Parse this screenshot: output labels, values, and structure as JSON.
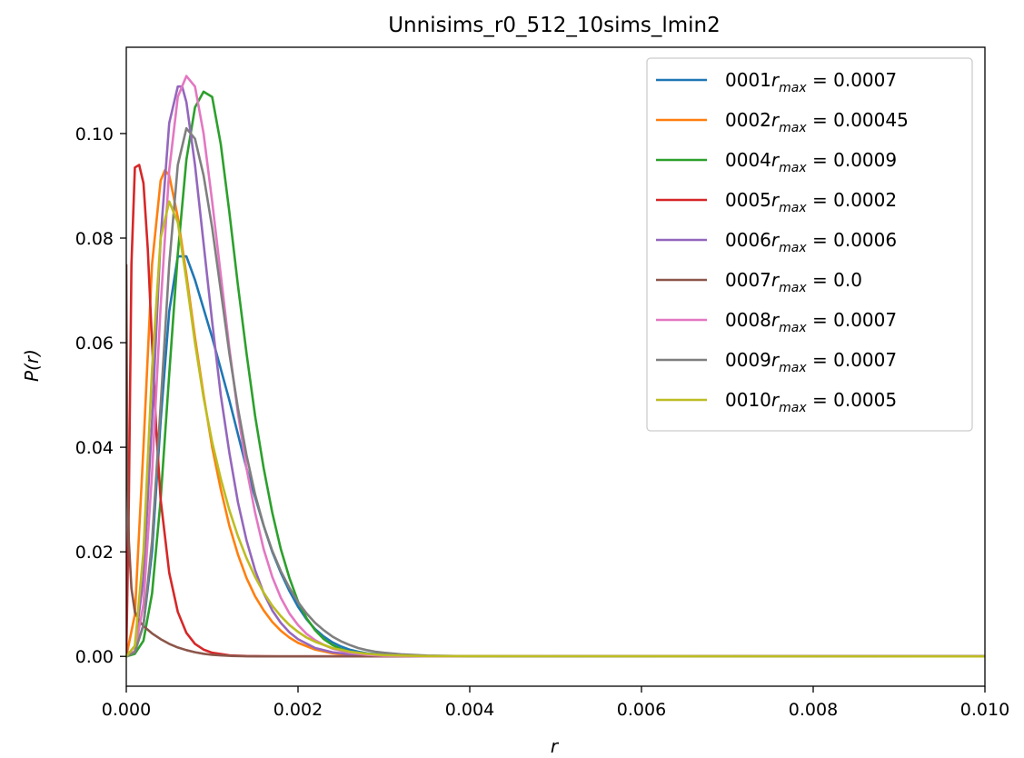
{
  "chart_data": {
    "type": "line",
    "title": "Unnisims_r0_512_10sims_lmin2",
    "xlabel": "r",
    "ylabel": "P(r)",
    "xlim": [
      0.0,
      0.01
    ],
    "ylim": [
      -0.0057,
      0.1165
    ],
    "xticks": [
      0.0,
      0.002,
      0.004,
      0.006,
      0.008,
      0.01
    ],
    "xtick_labels": [
      "0.000",
      "0.002",
      "0.004",
      "0.006",
      "0.008",
      "0.010"
    ],
    "yticks": [
      0.0,
      0.02,
      0.04,
      0.06,
      0.08,
      0.1
    ],
    "ytick_labels": [
      "0.00",
      "0.02",
      "0.04",
      "0.06",
      "0.08",
      "0.10"
    ],
    "grid": false,
    "legend_position": "top-right",
    "series": [
      {
        "name": "0001",
        "rmax": "0.0007",
        "color": "#1f77b4",
        "x": [
          0,
          0.0001,
          0.0002,
          0.0003,
          0.0004,
          0.0005,
          0.0006,
          0.0007,
          0.0008,
          0.0009,
          0.001,
          0.0011,
          0.0012,
          0.0013,
          0.0014,
          0.0015,
          0.0016,
          0.0017,
          0.0018,
          0.0019,
          0.002,
          0.0021,
          0.0022,
          0.0023,
          0.0024,
          0.0025,
          0.0026,
          0.0027,
          0.0028,
          0.003,
          0.0032,
          0.0035,
          0.004,
          0.005,
          0.01
        ],
        "y": [
          0,
          0.001,
          0.006,
          0.02,
          0.045,
          0.066,
          0.0765,
          0.0765,
          0.072,
          0.0665,
          0.061,
          0.055,
          0.049,
          0.0425,
          0.036,
          0.0305,
          0.025,
          0.02,
          0.016,
          0.0125,
          0.0095,
          0.0071,
          0.0052,
          0.0038,
          0.0027,
          0.0019,
          0.0013,
          0.0009,
          0.0006,
          0.0003,
          0.00015,
          5e-05,
          0,
          0,
          0
        ]
      },
      {
        "name": "0002",
        "rmax": "0.00045",
        "color": "#ff7f0e",
        "x": [
          0,
          0.0001,
          0.0002,
          0.0003,
          0.0004,
          0.00045,
          0.0005,
          0.0006,
          0.0007,
          0.0008,
          0.0009,
          0.001,
          0.0011,
          0.0012,
          0.0013,
          0.0014,
          0.0015,
          0.0016,
          0.0017,
          0.0018,
          0.0019,
          0.002,
          0.0022,
          0.0024,
          0.0026,
          0.0028,
          0.003,
          0.0035,
          0.01
        ],
        "y": [
          0,
          0.008,
          0.04,
          0.075,
          0.091,
          0.093,
          0.092,
          0.084,
          0.073,
          0.061,
          0.05,
          0.04,
          0.032,
          0.025,
          0.0195,
          0.015,
          0.0115,
          0.0088,
          0.0066,
          0.0049,
          0.0036,
          0.0026,
          0.0013,
          0.0006,
          0.00025,
          0.0001,
          4e-05,
          0,
          0
        ]
      },
      {
        "name": "0004",
        "rmax": "0.0009",
        "color": "#2ca02c",
        "x": [
          0,
          0.0001,
          0.0002,
          0.0003,
          0.0004,
          0.0005,
          0.0006,
          0.0007,
          0.0008,
          0.0009,
          0.001,
          0.0011,
          0.0012,
          0.0013,
          0.0014,
          0.0015,
          0.0016,
          0.0017,
          0.0018,
          0.0019,
          0.002,
          0.0021,
          0.0022,
          0.0023,
          0.0024,
          0.0025,
          0.0026,
          0.0027,
          0.0028,
          0.003,
          0.0032,
          0.0035,
          0.004,
          0.01
        ],
        "y": [
          0,
          0.0005,
          0.003,
          0.012,
          0.03,
          0.054,
          0.077,
          0.095,
          0.105,
          0.108,
          0.107,
          0.098,
          0.085,
          0.071,
          0.058,
          0.046,
          0.036,
          0.0275,
          0.0205,
          0.015,
          0.0105,
          0.0073,
          0.005,
          0.0033,
          0.0022,
          0.0014,
          0.0009,
          0.0006,
          0.0004,
          0.00015,
          5e-05,
          1e-05,
          0,
          0
        ]
      },
      {
        "name": "0005",
        "rmax": "0.0002",
        "color": "#d62728",
        "x": [
          0,
          3e-05,
          6e-05,
          0.0001,
          0.00015,
          0.0002,
          0.00025,
          0.0003,
          0.00035,
          0.0004,
          0.0005,
          0.0006,
          0.0007,
          0.0008,
          0.0009,
          0.001,
          0.0012,
          0.0014,
          0.0016,
          0.0018,
          0.002,
          0.0025,
          0.01
        ],
        "y": [
          0,
          0.03,
          0.075,
          0.0935,
          0.094,
          0.0905,
          0.078,
          0.06,
          0.043,
          0.03,
          0.016,
          0.0085,
          0.0045,
          0.0024,
          0.0013,
          0.0007,
          0.0002,
          6e-05,
          2e-05,
          0,
          0,
          0,
          0
        ]
      },
      {
        "name": "0006",
        "rmax": "0.0006",
        "color": "#9467bd",
        "x": [
          0,
          0.0001,
          0.0002,
          0.0003,
          0.0004,
          0.0005,
          0.0006,
          0.00065,
          0.0007,
          0.0008,
          0.0009,
          0.001,
          0.0011,
          0.0012,
          0.0013,
          0.0014,
          0.0015,
          0.0016,
          0.0017,
          0.0018,
          0.0019,
          0.002,
          0.0022,
          0.0024,
          0.0026,
          0.0028,
          0.003,
          0.0035,
          0.01
        ],
        "y": [
          0,
          0.002,
          0.015,
          0.045,
          0.08,
          0.102,
          0.109,
          0.109,
          0.106,
          0.094,
          0.079,
          0.064,
          0.05,
          0.039,
          0.0295,
          0.0222,
          0.0165,
          0.0121,
          0.0088,
          0.0064,
          0.0046,
          0.0033,
          0.0016,
          0.0008,
          0.0004,
          0.0002,
          0.0001,
          0,
          0
        ]
      },
      {
        "name": "0007",
        "rmax": "0.0",
        "color": "#8c564b",
        "x": [
          0,
          1e-05,
          3e-05,
          6e-05,
          0.0001,
          0.00015,
          0.0002,
          0.0003,
          0.0004,
          0.0005,
          0.0006,
          0.0007,
          0.0008,
          0.0009,
          0.001,
          0.0011,
          0.0012,
          0.0014,
          0.0016,
          0.002,
          0.01
        ],
        "y": [
          0.075,
          0.04,
          0.022,
          0.013,
          0.0085,
          0.0068,
          0.0058,
          0.0044,
          0.0033,
          0.0024,
          0.0017,
          0.0012,
          0.0008,
          0.0005,
          0.0003,
          0.0002,
          0.0001,
          3e-05,
          1e-05,
          0,
          0
        ]
      },
      {
        "name": "0008",
        "rmax": "0.0007",
        "color": "#e377c2",
        "x": [
          0,
          0.0001,
          0.0002,
          0.0003,
          0.0004,
          0.0005,
          0.0006,
          0.0007,
          0.0008,
          0.0009,
          0.001,
          0.0011,
          0.0012,
          0.0013,
          0.0014,
          0.0015,
          0.0016,
          0.0017,
          0.0018,
          0.0019,
          0.002,
          0.0021,
          0.0022,
          0.0023,
          0.0024,
          0.0026,
          0.0028,
          0.003,
          0.0035,
          0.01
        ],
        "y": [
          0,
          0.001,
          0.01,
          0.035,
          0.067,
          0.093,
          0.107,
          0.111,
          0.109,
          0.1,
          0.087,
          0.073,
          0.059,
          0.0465,
          0.036,
          0.0275,
          0.0205,
          0.0152,
          0.0112,
          0.0082,
          0.006,
          0.0043,
          0.0031,
          0.0022,
          0.0015,
          0.0007,
          0.0003,
          0.0001,
          0,
          0
        ]
      },
      {
        "name": "0009",
        "rmax": "0.0007",
        "color": "#7f7f7f",
        "x": [
          0,
          0.0001,
          0.0002,
          0.0003,
          0.0004,
          0.0005,
          0.0006,
          0.0007,
          0.0008,
          0.0009,
          0.001,
          0.0011,
          0.0012,
          0.0013,
          0.0014,
          0.0015,
          0.0016,
          0.0017,
          0.0018,
          0.0019,
          0.002,
          0.0021,
          0.0022,
          0.0023,
          0.0024,
          0.0025,
          0.0026,
          0.0027,
          0.0028,
          0.0029,
          0.003,
          0.0032,
          0.0035,
          0.004,
          0.0045,
          0.01
        ],
        "y": [
          0,
          0.0008,
          0.006,
          0.022,
          0.048,
          0.075,
          0.094,
          0.101,
          0.099,
          0.092,
          0.082,
          0.07,
          0.058,
          0.0475,
          0.0385,
          0.031,
          0.025,
          0.0202,
          0.0163,
          0.0131,
          0.0104,
          0.0082,
          0.0064,
          0.005,
          0.0038,
          0.0029,
          0.0022,
          0.0016,
          0.0012,
          0.0009,
          0.0007,
          0.0004,
          0.00015,
          3e-05,
          1e-05,
          0
        ]
      },
      {
        "name": "0010",
        "rmax": "0.0005",
        "color": "#bcbd22",
        "x": [
          0,
          0.0001,
          0.0002,
          0.0003,
          0.0004,
          0.0005,
          0.0006,
          0.0007,
          0.0008,
          0.0009,
          0.001,
          0.0011,
          0.0012,
          0.0013,
          0.0014,
          0.0015,
          0.0016,
          0.0017,
          0.0018,
          0.0019,
          0.002,
          0.0021,
          0.0022,
          0.0024,
          0.0026,
          0.0028,
          0.003,
          0.0035,
          0.01
        ],
        "y": [
          0,
          0.002,
          0.02,
          0.055,
          0.08,
          0.087,
          0.083,
          0.072,
          0.06,
          0.0495,
          0.041,
          0.034,
          0.028,
          0.023,
          0.0188,
          0.0152,
          0.0122,
          0.0097,
          0.0077,
          0.006,
          0.0047,
          0.0036,
          0.0028,
          0.0016,
          0.0009,
          0.0005,
          0.00025,
          5e-05,
          0
        ]
      }
    ]
  }
}
